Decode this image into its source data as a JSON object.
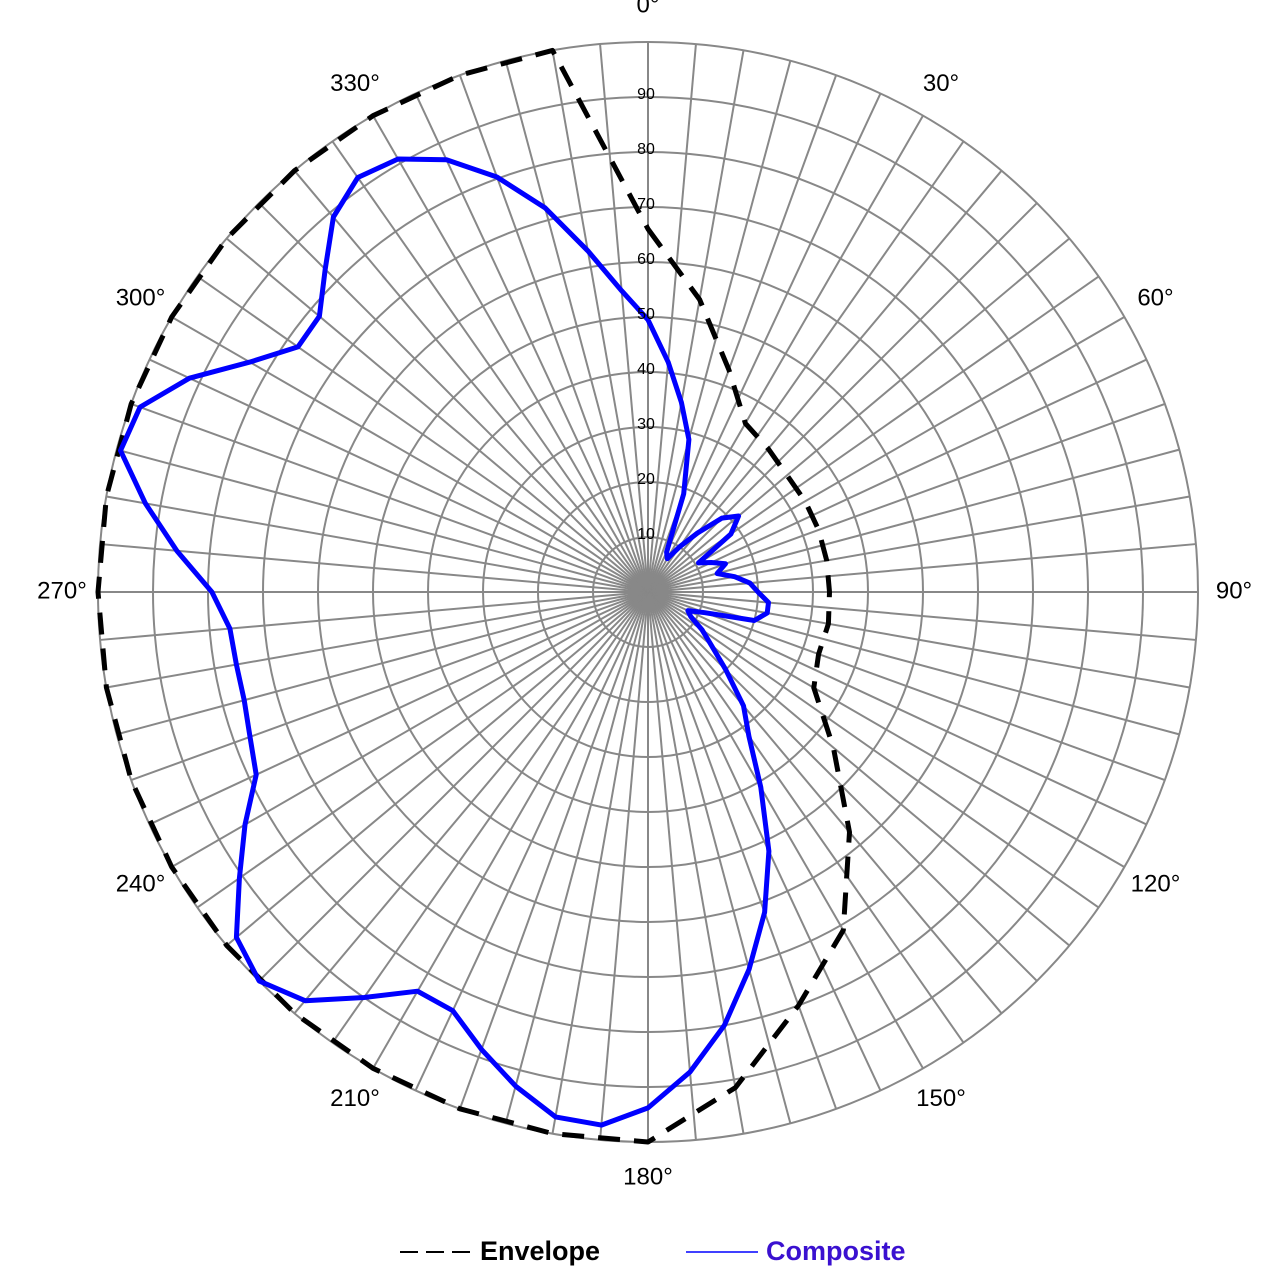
{
  "chart_data": {
    "type": "polar",
    "rlim": [
      0,
      100
    ],
    "rticks": [
      10,
      20,
      30,
      40,
      50,
      60,
      70,
      80,
      90
    ],
    "thetaticks": [
      {
        "value": 0,
        "label": "0°"
      },
      {
        "value": 30,
        "label": "30°"
      },
      {
        "value": 60,
        "label": "60°"
      },
      {
        "value": 90,
        "label": "90°"
      },
      {
        "value": 120,
        "label": "120°"
      },
      {
        "value": 150,
        "label": "150°"
      },
      {
        "value": 180,
        "label": "180°"
      },
      {
        "value": 210,
        "label": "210°"
      },
      {
        "value": 240,
        "label": "240°"
      },
      {
        "value": 270,
        "label": "270°"
      },
      {
        "value": 300,
        "label": "300°"
      },
      {
        "value": 330,
        "label": "330°"
      }
    ],
    "grid": true,
    "legend": "bottom",
    "series": [
      {
        "name": "Envelope",
        "color": "#000000",
        "dash": true,
        "theta": [
          0,
          10,
          20,
          30,
          40,
          50,
          60,
          70,
          80,
          90,
          100,
          110,
          120,
          130,
          140,
          150,
          160,
          170,
          180,
          190,
          200,
          210,
          220,
          230,
          240,
          250,
          260,
          270,
          280,
          290,
          300,
          310,
          320,
          330,
          340,
          350
        ],
        "values": [
          66,
          54,
          43,
          35.4,
          34,
          33,
          33,
          33,
          33,
          33,
          33.3,
          33,
          34.8,
          44,
          57,
          71,
          80,
          91.5,
          100,
          100,
          100,
          100,
          100,
          100,
          100,
          100,
          100,
          100,
          100,
          100,
          100,
          100,
          100,
          100,
          100,
          100
        ]
      },
      {
        "name": "Composite",
        "color": "#0000ff",
        "dash": false,
        "theta": [
          0,
          5,
          10,
          15,
          20,
          25,
          30,
          35,
          40,
          45,
          50,
          55,
          60,
          65,
          70,
          75,
          80,
          85,
          90,
          95,
          100,
          105,
          110,
          115,
          120,
          125,
          130,
          135,
          140,
          145,
          150,
          155,
          160,
          165,
          170,
          175,
          180,
          185,
          190,
          195,
          200,
          205,
          210,
          215,
          220,
          225,
          230,
          235,
          240,
          245,
          250,
          255,
          260,
          265,
          270,
          275,
          280,
          285,
          290,
          295,
          300,
          305,
          310,
          315,
          320,
          325,
          330,
          335,
          340,
          345,
          350,
          355
        ],
        "values": [
          49.5,
          42,
          35,
          28.7,
          19,
          8,
          7,
          10,
          14,
          19,
          21.5,
          18.4,
          10.6,
          12.7,
          15,
          13,
          16,
          18.6,
          20,
          22,
          22,
          20,
          11,
          8,
          9,
          12,
          15,
          20,
          27,
          32,
          41,
          52,
          62,
          71,
          80,
          87.6,
          93.8,
          97.3,
          96.9,
          93,
          88.5,
          84,
          83.8,
          90,
          97,
          100,
          97.7,
          90.7,
          84.6,
          78.6,
          77,
          76,
          76,
          76.3,
          79.3,
          86,
          92.8,
          99.3,
          98.3,
          92,
          83.6,
          77.7,
          78,
          83,
          89,
          92,
          90.9,
          86.7,
          80.3,
          72.3,
          63,
          55
        ]
      }
    ]
  }
}
